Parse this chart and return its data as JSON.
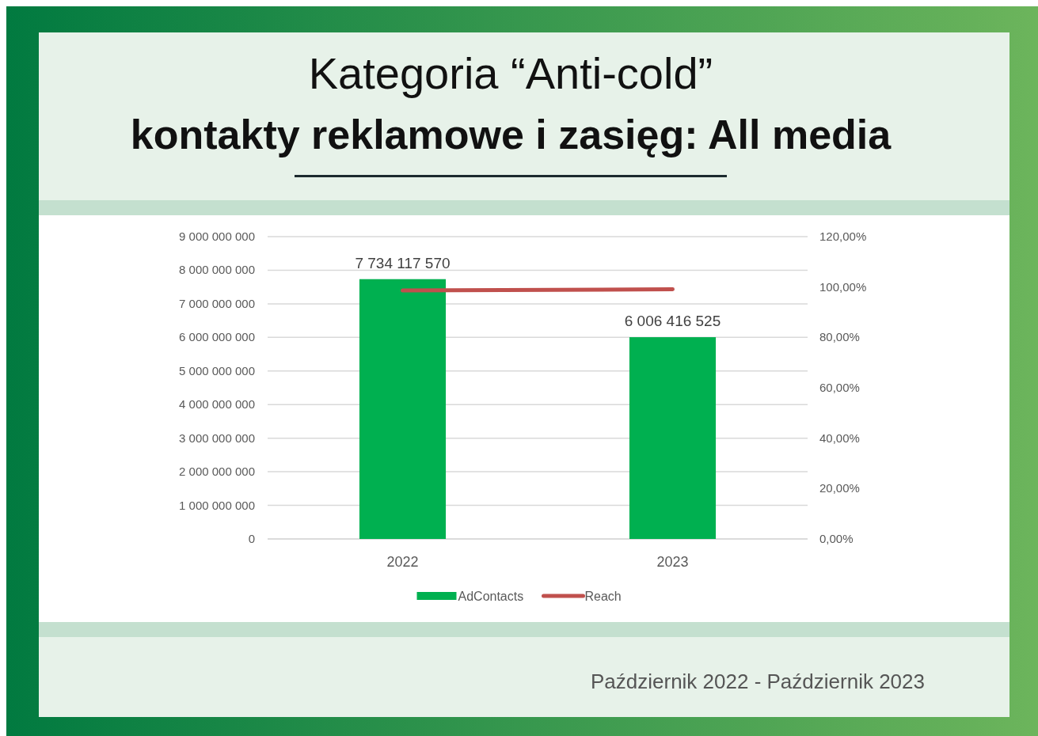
{
  "chart_data": {
    "type": "bar",
    "title": "Kategoria “Anti-cold”",
    "subtitle": "kontakty reklamowe i zasięg: All media",
    "annotations": [
      "Październik 2022 - Październik 2023"
    ],
    "categories": [
      "2022",
      "2023"
    ],
    "series": [
      {
        "name": "AdContacts",
        "color": "#00b050",
        "values": [
          7734117570,
          6006416525
        ],
        "value_labels": [
          "7 734 117 570",
          "6 006 416 525"
        ]
      },
      {
        "name": "Reach",
        "type": "line",
        "axis": "y2",
        "color": "#c0504d",
        "values": [
          98.6,
          99.1
        ]
      }
    ],
    "ylim": [
      0,
      9000000000
    ],
    "yticks": [
      {
        "value": 0,
        "label": "0"
      },
      {
        "value": 1000000000,
        "label": "1 000 000 000"
      },
      {
        "value": 2000000000,
        "label": "2 000 000 000"
      },
      {
        "value": 3000000000,
        "label": "3 000 000 000"
      },
      {
        "value": 4000000000,
        "label": "4 000 000 000"
      },
      {
        "value": 5000000000,
        "label": "5 000 000 000"
      },
      {
        "value": 6000000000,
        "label": "6 000 000 000"
      },
      {
        "value": 7000000000,
        "label": "7 000 000 000"
      },
      {
        "value": 8000000000,
        "label": "8 000 000 000"
      },
      {
        "value": 9000000000,
        "label": "9 000 000 000"
      }
    ],
    "y2lim": [
      0,
      120
    ],
    "y2ticks": [
      {
        "value": 0,
        "label": "0,00%"
      },
      {
        "value": 20,
        "label": "20,00%"
      },
      {
        "value": 40,
        "label": "40,00%"
      },
      {
        "value": 60,
        "label": "60,00%"
      },
      {
        "value": 80,
        "label": "80,00%"
      },
      {
        "value": 100,
        "label": "100,00%"
      },
      {
        "value": 120,
        "label": "120,00%"
      }
    ],
    "grid": "y",
    "legend": "bottom",
    "marker": "none"
  }
}
